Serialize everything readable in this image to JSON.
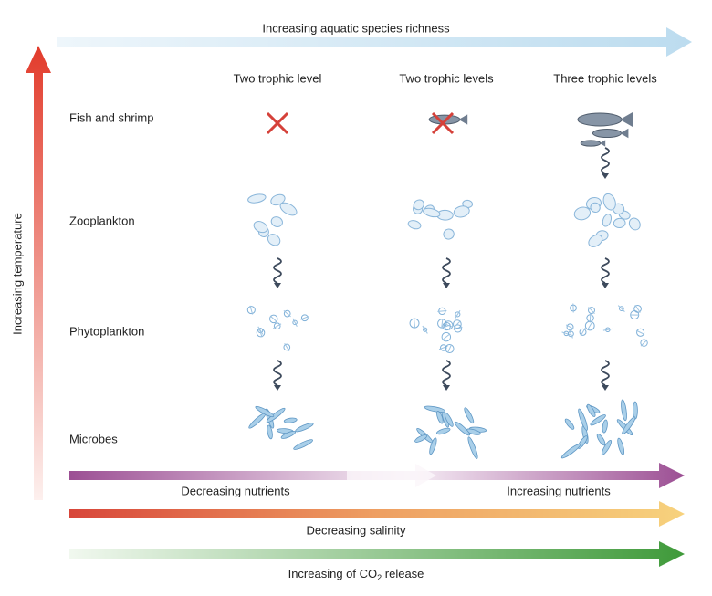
{
  "top_arrow": "Increasing aquatic species richness",
  "left_arrow": "Increasing temperature",
  "columns": [
    "Two trophic level",
    "Two trophic levels",
    "Three trophic levels"
  ],
  "rows": [
    "Fish and shrimp",
    "Zooplankton",
    "Phytoplankton",
    "Microbes"
  ],
  "nutrients": {
    "left": "Decreasing nutrients",
    "right": "Increasing nutrients"
  },
  "salinity": "Decreasing salinity",
  "co2": {
    "before": "Increasing of CO",
    "subscript": "2",
    "after": " release"
  }
}
